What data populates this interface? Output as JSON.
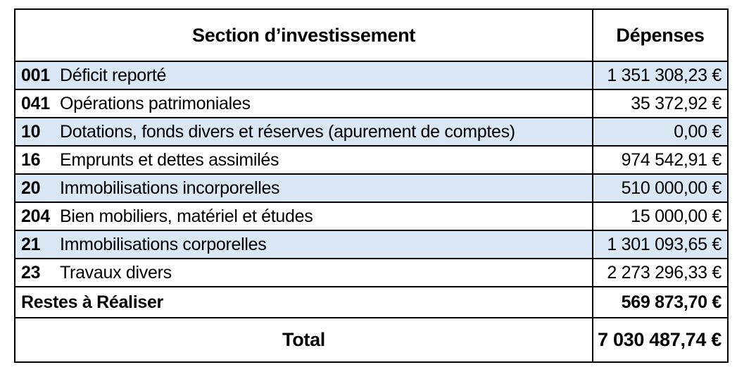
{
  "table": {
    "header": {
      "section": "Section d’investissement",
      "depenses": "Dépenses"
    },
    "rows": [
      {
        "code": "001",
        "label": "Déficit reporté",
        "value": "1 351 308,23 €",
        "shaded": true
      },
      {
        "code": "041",
        "label": "Opérations patrimoniales",
        "value": "35 372,92 €",
        "shaded": false
      },
      {
        "code": "10",
        "label": "Dotations, fonds divers et réserves (apurement de comptes)",
        "value": "0,00 €",
        "shaded": true
      },
      {
        "code": "16",
        "label": "Emprunts et dettes assimilés",
        "value": "974 542,91 €",
        "shaded": false
      },
      {
        "code": "20",
        "label": "Immobilisations incorporelles",
        "value": "510 000,00 €",
        "shaded": true
      },
      {
        "code": "204",
        "label": "Bien mobiliers, matériel et études",
        "value": "15 000,00 €",
        "shaded": false
      },
      {
        "code": "21",
        "label": "Immobilisations corporelles",
        "value": "1 301 093,65 €",
        "shaded": true
      },
      {
        "code": "23",
        "label": "Travaux divers",
        "value": "2 273 296,33 €",
        "shaded": false
      }
    ],
    "restes": {
      "label": "Restes à Réaliser",
      "value": "569 873,70 €"
    },
    "total": {
      "label": "Total",
      "value": "7 030 487,74 €"
    }
  },
  "colors": {
    "row_shade": "#DAE8F5",
    "border": "#000000",
    "background": "#FFFFFF"
  }
}
